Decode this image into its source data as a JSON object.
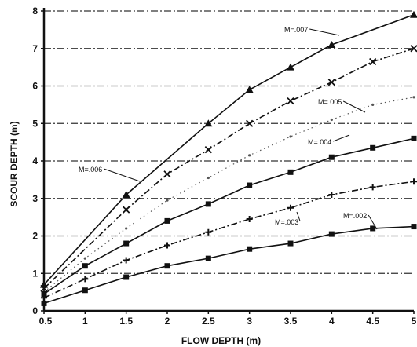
{
  "chart_data": {
    "type": "line",
    "xlabel": "FLOW DEPTH (m)",
    "ylabel": "SCOUR DEPTH (m)",
    "xlim": [
      0.5,
      5
    ],
    "ylim": [
      0,
      8
    ],
    "x_ticks": [
      "0.5",
      "1",
      "1.5",
      "2",
      "2.5",
      "3",
      "3.5",
      "4",
      "4.5",
      "5"
    ],
    "y_ticks": [
      "0",
      "1",
      "2",
      "3",
      "4",
      "5",
      "6",
      "7",
      "8"
    ],
    "grid": "horizontal dash-dot lines",
    "series": [
      {
        "name": "M=.007",
        "marker": "triangle",
        "line": "solid",
        "x": [
          0.5,
          1.5,
          2.5,
          3.0,
          3.5,
          4.0,
          5.0
        ],
        "y": [
          0.7,
          3.1,
          5.0,
          5.9,
          6.5,
          7.1,
          7.9
        ]
      },
      {
        "name": "M=.006",
        "marker": "x",
        "line": "dash-dot",
        "x": [
          0.5,
          1.5,
          2.0,
          2.5,
          3.0,
          3.5,
          4.0,
          4.5,
          5.0
        ],
        "y": [
          0.6,
          2.7,
          3.65,
          4.3,
          5.0,
          5.6,
          6.1,
          6.65,
          7.0
        ]
      },
      {
        "name": "M=.005",
        "marker": "dot",
        "line": "dotted",
        "x": [
          0.5,
          1.0,
          1.5,
          2.0,
          2.5,
          3.0,
          3.5,
          4.0,
          4.5,
          5.0
        ],
        "y": [
          0.5,
          1.4,
          2.2,
          2.95,
          3.55,
          4.15,
          4.65,
          5.1,
          5.5,
          5.7
        ]
      },
      {
        "name": "M=.004",
        "marker": "square",
        "line": "solid",
        "x": [
          0.5,
          1.0,
          1.5,
          2.0,
          2.5,
          3.0,
          3.5,
          4.0,
          4.5,
          5.0
        ],
        "y": [
          0.45,
          1.2,
          1.8,
          2.4,
          2.85,
          3.35,
          3.7,
          4.1,
          4.35,
          4.6
        ]
      },
      {
        "name": "M=.003",
        "marker": "plus",
        "line": "dash-dot",
        "x": [
          0.5,
          1.0,
          1.5,
          2.0,
          2.5,
          3.0,
          3.5,
          4.0,
          4.5,
          5.0
        ],
        "y": [
          0.35,
          0.85,
          1.35,
          1.75,
          2.1,
          2.45,
          2.75,
          3.1,
          3.3,
          3.45
        ]
      },
      {
        "name": "M=.002",
        "marker": "square",
        "line": "solid",
        "x": [
          0.5,
          1.0,
          1.5,
          2.0,
          2.5,
          3.0,
          3.5,
          4.0,
          4.5,
          5.0
        ],
        "y": [
          0.2,
          0.55,
          0.9,
          1.2,
          1.4,
          1.65,
          1.8,
          2.05,
          2.2,
          2.25
        ]
      }
    ],
    "annotations": [
      {
        "text": "M=.007",
        "series": "M=.007"
      },
      {
        "text": "M=.006",
        "series": "M=.006"
      },
      {
        "text": "M=.005",
        "series": "M=.005"
      },
      {
        "text": "M=.004",
        "series": "M=.004"
      },
      {
        "text": "M=.003",
        "series": "M=.003"
      },
      {
        "text": "M=.002",
        "series": "M=.002"
      }
    ]
  }
}
